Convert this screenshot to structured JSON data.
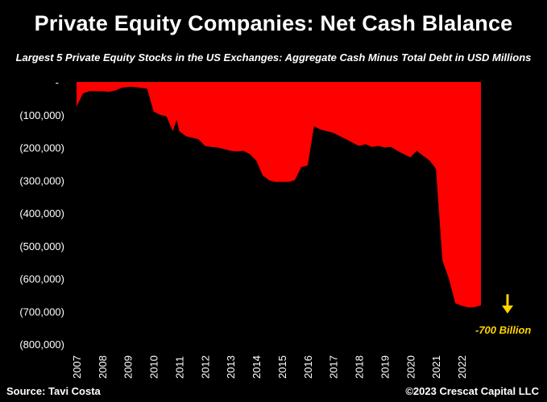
{
  "title": "Private Equity Companies: Net Cash Blalance",
  "subtitle": "Largest 5 Private Equity Stocks in the US Exchanges: Aggregate Cash Minus Total Debt in USD Millions",
  "source": "Source: Tavi Costa",
  "copyright": "©2023 Crescat Capital LLC",
  "colors": {
    "background": "#000000",
    "area": "#ff0000",
    "annotation": "#ffd400"
  },
  "chart_data": {
    "type": "area",
    "title": "Private Equity Companies: Net Cash Blalance",
    "subtitle": "Largest 5 Private Equity Stocks in the US Exchanges: Aggregate Cash Minus Total Debt in USD Millions",
    "xlabel": "",
    "ylabel": "",
    "ylim": [
      -800000,
      0
    ],
    "xlim": [
      2007.0,
      2022.75
    ],
    "yticks": [
      0,
      -100000,
      -200000,
      -300000,
      -400000,
      -500000,
      -600000,
      -700000,
      -800000
    ],
    "ytick_labels": [
      "-",
      "(100,000)",
      "(200,000)",
      "(300,000)",
      "(400,000)",
      "(500,000)",
      "(600,000)",
      "(700,000)",
      "(800,000)"
    ],
    "xtick_labels": [
      "2007",
      "2008",
      "2009",
      "2010",
      "2011",
      "2012",
      "2013",
      "2014",
      "2015",
      "2016",
      "2017",
      "2018",
      "2019",
      "2020",
      "2021",
      "2022"
    ],
    "grid": false,
    "legend": "none",
    "annotation": {
      "text": "-700 Billion",
      "x": 2022.75,
      "y": -700000
    },
    "series": [
      {
        "x": [
          2007.0,
          2007.25,
          2007.5,
          2007.75,
          2008.0,
          2008.25,
          2008.5,
          2008.75,
          2009.0,
          2009.25,
          2009.5,
          2009.75,
          2010.0,
          2010.25,
          2010.5,
          2010.75,
          2010.9,
          2011.0,
          2011.25,
          2011.5,
          2011.75,
          2012.0,
          2012.25,
          2012.5,
          2012.75,
          2013.0,
          2013.25,
          2013.5,
          2013.75,
          2014.0,
          2014.25,
          2014.5,
          2014.75,
          2015.0,
          2015.25,
          2015.5,
          2015.75,
          2016.0,
          2016.25,
          2016.5,
          2016.75,
          2017.0,
          2017.25,
          2017.5,
          2017.75,
          2018.0,
          2018.25,
          2018.5,
          2018.75,
          2019.0,
          2019.25,
          2019.5,
          2019.75,
          2020.0,
          2020.25,
          2020.5,
          2020.75,
          2021.0,
          2021.25,
          2021.5,
          2021.75,
          2022.0,
          2022.25,
          2022.5,
          2022.75
        ],
        "y": [
          -75000,
          -35000,
          -28000,
          -28000,
          -28000,
          -30000,
          -26000,
          -18000,
          -15000,
          -15000,
          -18000,
          -20000,
          -90000,
          -100000,
          -105000,
          -150000,
          -115000,
          -150000,
          -165000,
          -170000,
          -175000,
          -195000,
          -198000,
          -200000,
          -205000,
          -210000,
          -212000,
          -210000,
          -220000,
          -240000,
          -285000,
          -300000,
          -305000,
          -305000,
          -305000,
          -300000,
          -260000,
          -255000,
          -135000,
          -145000,
          -150000,
          -155000,
          -165000,
          -175000,
          -185000,
          -195000,
          -190000,
          -198000,
          -195000,
          -200000,
          -198000,
          -210000,
          -220000,
          -230000,
          -210000,
          -225000,
          -240000,
          -265000,
          -545000,
          -600000,
          -675000,
          -683000,
          -688000,
          -687000,
          -682000
        ]
      }
    ]
  }
}
